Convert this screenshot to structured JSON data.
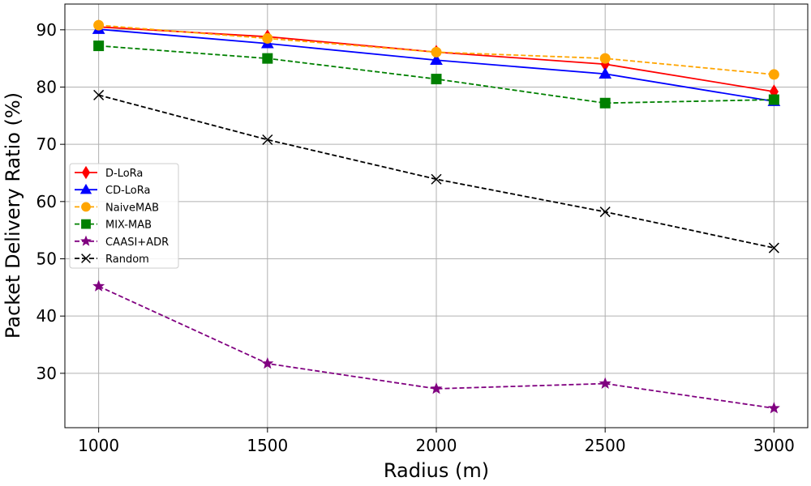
{
  "chart_data": {
    "type": "line",
    "title": "",
    "xlabel": "Radius (m)",
    "ylabel": "Packet Delivery Ratio (%)",
    "x": [
      1000,
      1500,
      2000,
      2500,
      3000
    ],
    "xticks": [
      1000,
      1500,
      2000,
      2500,
      3000
    ],
    "yticks": [
      30,
      40,
      50,
      60,
      70,
      80,
      90
    ],
    "xlim": [
      900,
      3100
    ],
    "ylim": [
      20.5,
      94.5
    ],
    "grid": true,
    "legend_position": "center-left",
    "series": [
      {
        "name": "D-LoRa",
        "values": [
          90.5,
          88.8,
          86.1,
          84.0,
          79.2
        ],
        "color": "#ff0000",
        "marker": "diamond",
        "dash": "solid"
      },
      {
        "name": "CD-LoRa",
        "values": [
          90.1,
          87.6,
          84.7,
          82.3,
          77.5
        ],
        "color": "#0000ff",
        "marker": "triangle",
        "dash": "solid"
      },
      {
        "name": "NaiveMAB",
        "values": [
          90.8,
          88.5,
          86.1,
          85.0,
          82.2
        ],
        "color": "#ffa500",
        "marker": "circle",
        "dash": "dashed"
      },
      {
        "name": "MIX-MAB",
        "values": [
          87.2,
          85.0,
          81.4,
          77.2,
          77.8
        ],
        "color": "#008000",
        "marker": "square",
        "dash": "dashed"
      },
      {
        "name": "CAASI+ADR",
        "values": [
          45.2,
          31.7,
          27.3,
          28.2,
          23.9
        ],
        "color": "#800080",
        "marker": "star",
        "dash": "dashed"
      },
      {
        "name": "Random",
        "values": [
          78.6,
          70.8,
          63.9,
          58.2,
          51.9
        ],
        "color": "#000000",
        "marker": "x",
        "dash": "dashed"
      }
    ]
  }
}
